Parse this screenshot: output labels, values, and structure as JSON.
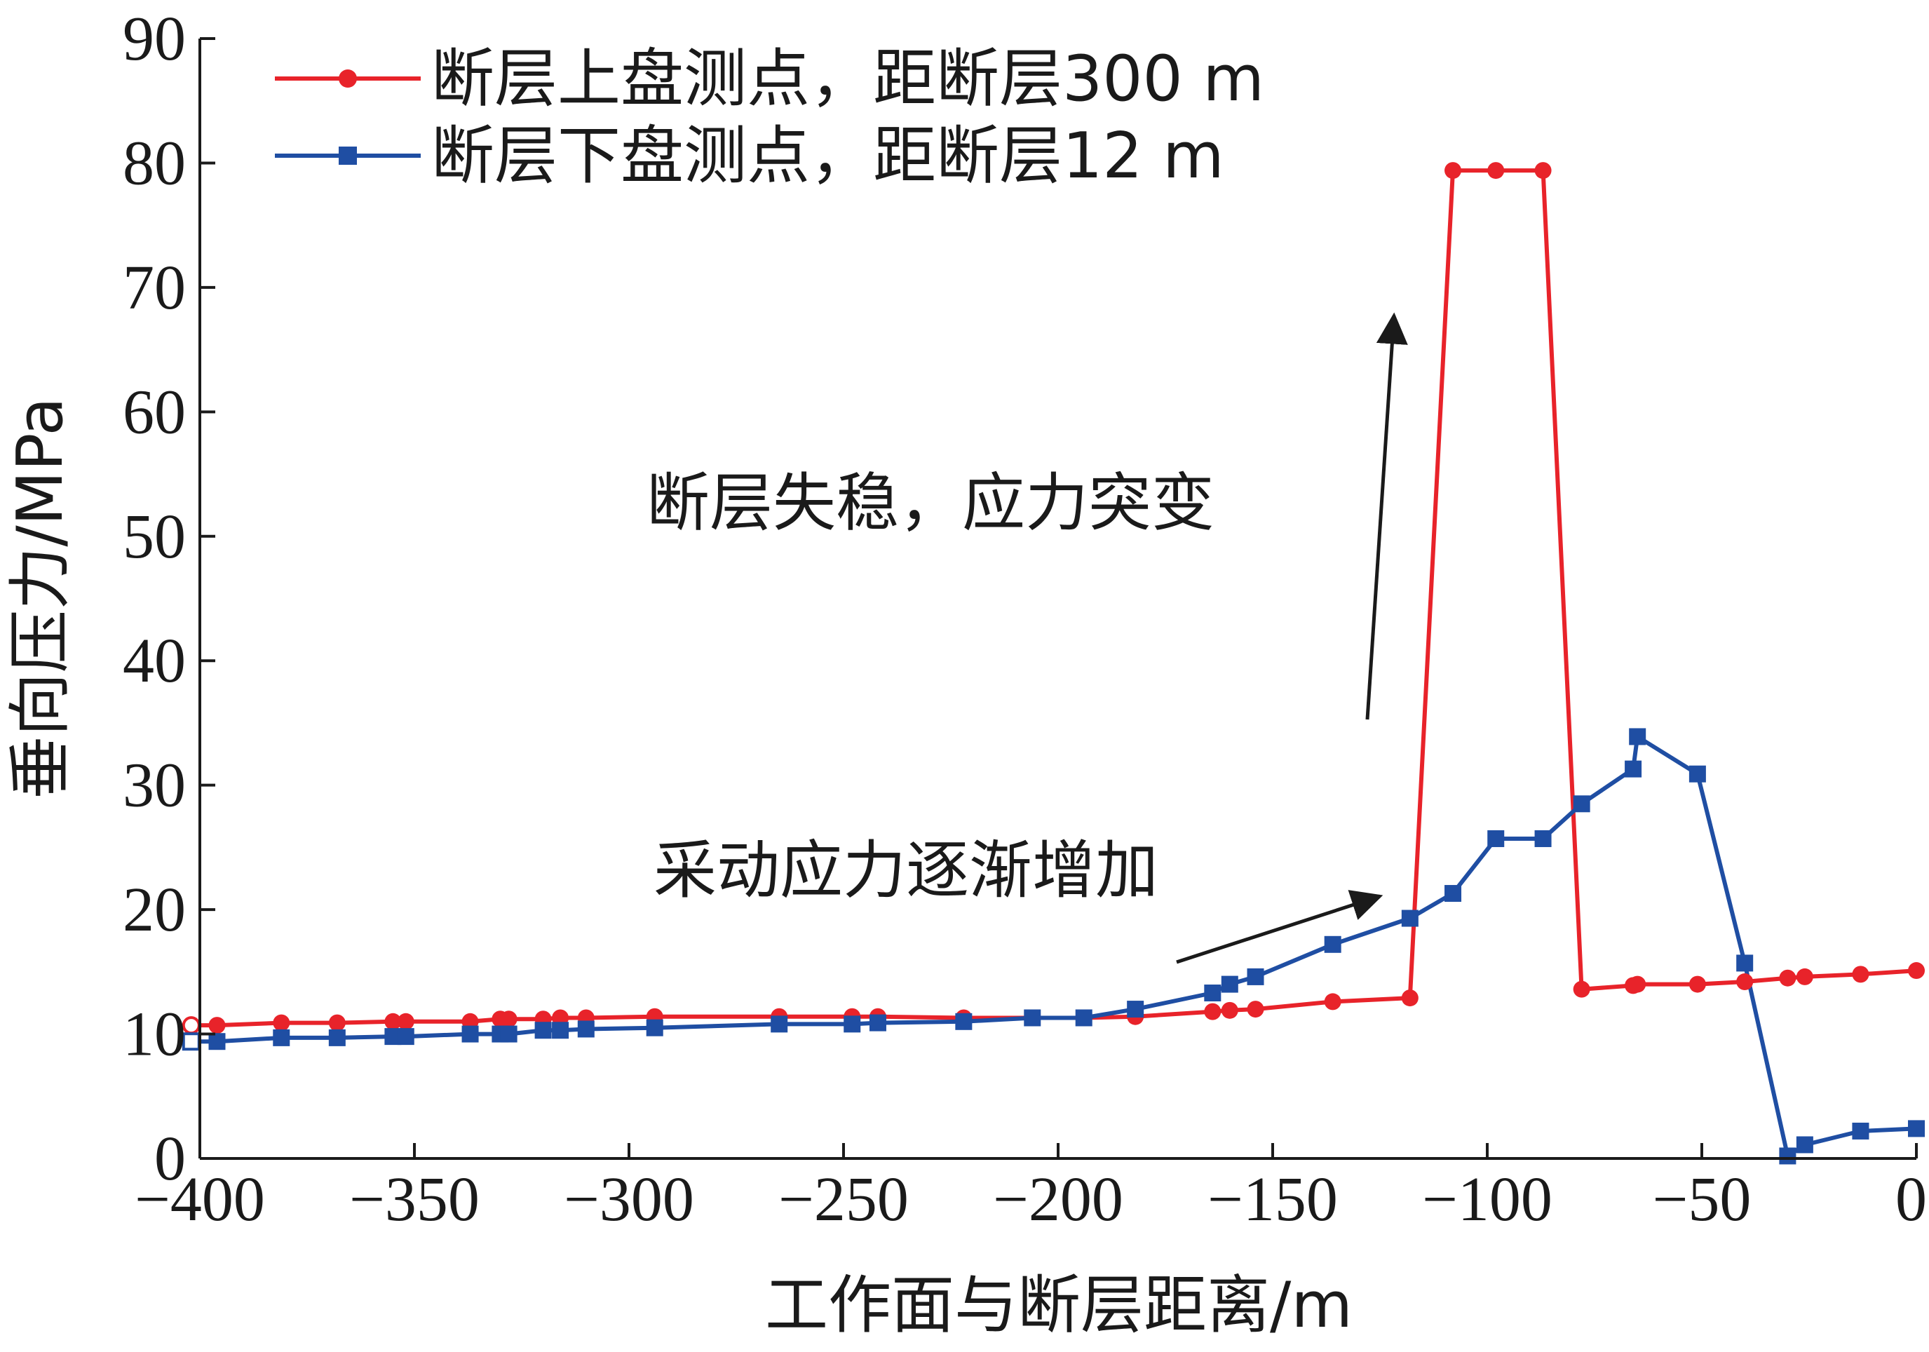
{
  "chart_data": {
    "type": "line",
    "title": "",
    "xlabel": "工作面与断层距离/m",
    "ylabel": "垂向压力/MPa",
    "xlim": [
      -400,
      0
    ],
    "ylim": [
      0,
      90
    ],
    "xticks": [
      -400,
      -350,
      -300,
      -250,
      -200,
      -150,
      -100,
      -50,
      0
    ],
    "xtick_labels": [
      "−400",
      "−350",
      "−300",
      "−250",
      "−200",
      "−150",
      "−100",
      "−50",
      "0"
    ],
    "yticks": [
      0,
      10,
      20,
      30,
      40,
      50,
      60,
      70,
      80,
      90
    ],
    "ytick_labels": [
      "0",
      "10",
      "20",
      "30",
      "40",
      "50",
      "60",
      "70",
      "80",
      "90"
    ],
    "grid": false,
    "legend_position": "top-left",
    "series": [
      {
        "name": "断层上盘测点，距断层300 m",
        "color": "#e8232a",
        "marker": "circle",
        "x": [
          -402,
          -396,
          -381,
          -368,
          -355,
          -352,
          -337,
          -330,
          -328,
          -320,
          -316,
          -310,
          -294,
          -265,
          -248,
          -242,
          -222,
          -206,
          -194,
          -182,
          -164,
          -160,
          -154,
          -136,
          -118,
          -108,
          -98,
          -87,
          -78,
          -66,
          -65,
          -51,
          -40,
          -30,
          -26,
          -13,
          0
        ],
        "y": [
          10.7,
          10.7,
          10.9,
          10.9,
          11,
          11,
          11,
          11.2,
          11.2,
          11.2,
          11.3,
          11.3,
          11.4,
          11.4,
          11.4,
          11.4,
          11.3,
          11.3,
          11.3,
          11.4,
          11.8,
          11.9,
          12,
          12.6,
          12.9,
          79.4,
          79.4,
          79.4,
          13.6,
          13.9,
          14,
          14,
          14.2,
          14.5,
          14.6,
          14.8,
          15.1
        ]
      },
      {
        "name": "断层下盘测点，距断层12 m",
        "color": "#1f4ea3",
        "marker": "square",
        "x": [
          -402,
          -396,
          -381,
          -368,
          -355,
          -352,
          -337,
          -330,
          -328,
          -320,
          -316,
          -310,
          -294,
          -265,
          -248,
          -242,
          -222,
          -206,
          -194,
          -182,
          -164,
          -160,
          -154,
          -136,
          -118,
          -108,
          -98,
          -87,
          -78,
          -66,
          -65,
          -51,
          -40,
          -30,
          -26,
          -13,
          0
        ],
        "y": [
          9.4,
          9.4,
          9.7,
          9.7,
          9.8,
          9.8,
          10,
          10,
          10,
          10.3,
          10.3,
          10.4,
          10.5,
          10.8,
          10.8,
          10.9,
          11,
          11.3,
          11.3,
          12,
          13.3,
          14,
          14.6,
          17.2,
          19.3,
          21.3,
          25.7,
          25.7,
          28.5,
          31.3,
          33.9,
          30.9,
          15.7,
          0.2,
          1.1,
          2.2,
          2.4
        ]
      }
    ],
    "annotations": [
      {
        "text": "断层失稳，应力突变"
      },
      {
        "text": "采动应力逐渐增加"
      }
    ]
  }
}
